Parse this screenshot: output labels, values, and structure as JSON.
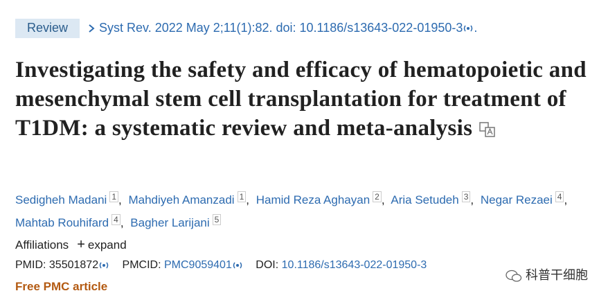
{
  "header": {
    "badge": "Review",
    "journal": "Syst Rev.",
    "citation": "2022 May 2;11(1):82. doi: 10.1186/s13643-022-01950-3"
  },
  "title": "Investigating the safety and efficacy of hematopoietic and mesenchymal stem cell transplantation for treatment of T1DM: a systematic review and meta-analysis",
  "authors": [
    {
      "name": "Sedigheh Madani",
      "affiliation": 1
    },
    {
      "name": "Mahdiyeh Amanzadi",
      "affiliation": 1
    },
    {
      "name": "Hamid Reza Aghayan",
      "affiliation": 2
    },
    {
      "name": "Aria Setudeh",
      "affiliation": 3
    },
    {
      "name": "Negar Rezaei",
      "affiliation": 4
    },
    {
      "name": "Mahtab Rouhifard",
      "affiliation": 4
    },
    {
      "name": "Bagher Larijani",
      "affiliation": 5
    }
  ],
  "affiliations": {
    "label": "Affiliations",
    "toggle": "+",
    "action": "expand"
  },
  "identifiers": {
    "pmid_label": "PMID:",
    "pmid": "35501872",
    "pmcid_label": "PMCID:",
    "pmcid": "PMC9059401",
    "doi_label": "DOI:",
    "doi": "10.1186/s13643-022-01950-3"
  },
  "free_article": "Free PMC article",
  "watermark": "科普干细胞"
}
